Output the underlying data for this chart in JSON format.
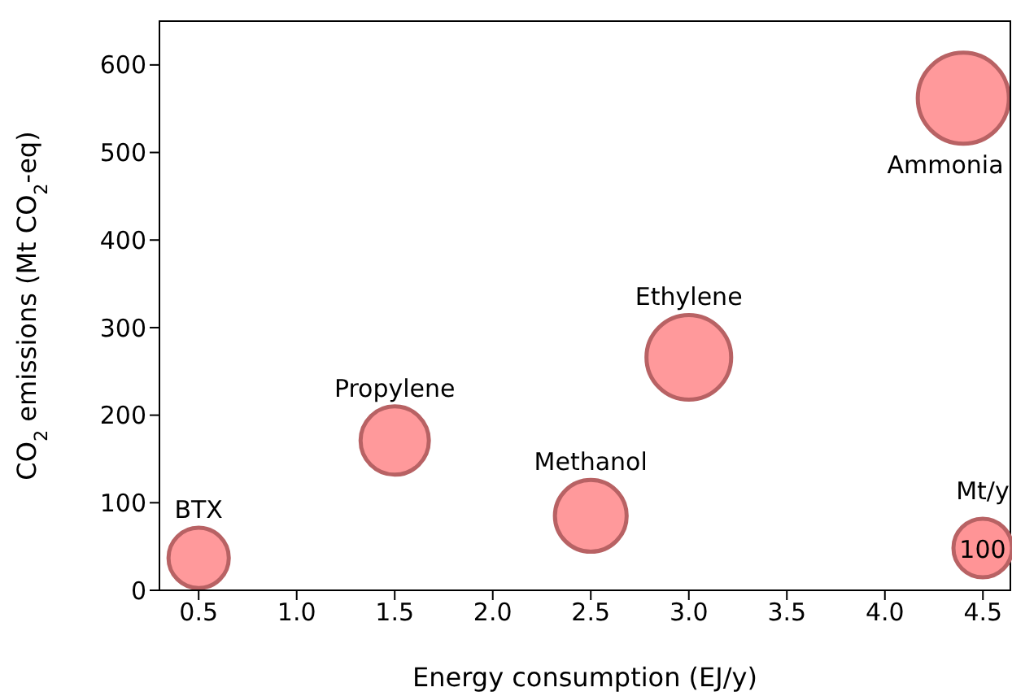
{
  "chart_data": {
    "type": "bubble",
    "xlabel": "Energy consumption (EJ/y)",
    "ylabel": "CO$_{2}$ emissions (Mt CO$_{2}$-eq)",
    "legend_title": "Mt/y",
    "x": [
      0.5,
      1.5,
      2.5,
      3.0,
      4.4
    ],
    "series": [
      {
        "color": "#ff9496",
        "values": [
          37,
          171,
          85,
          266,
          562
        ],
        "sizes": [
          106,
          136,
          150,
          209,
          242
        ]
      }
    ],
    "size_legend": [
      100
    ],
    "annotations": [
      {
        "text": "BTX",
        "x": 0.5,
        "y": 37
      },
      {
        "text": "Propylene",
        "x": 1.5,
        "y": 171
      },
      {
        "text": "Methanol",
        "x": 2.5,
        "y": 85
      },
      {
        "text": "Ethylene",
        "x": 3.0,
        "y": 266
      },
      {
        "text": "Ammonia",
        "x": 4.4,
        "y": 562
      }
    ],
    "xlim": [
      0.3,
      4.64
    ],
    "xticks": [
      0.5,
      {
        "value": 1,
        "label": "1.0"
      },
      1.5,
      {
        "value": 2,
        "label": "2.0"
      },
      2.5,
      {
        "value": 3,
        "label": "3.0"
      },
      3.5,
      {
        "value": 4,
        "label": "4.0"
      },
      4.5
    ],
    "ylim": [
      0,
      650
    ],
    "yticks": [
      0,
      100,
      200,
      300,
      400,
      500,
      600
    ],
    "grid": false
  }
}
